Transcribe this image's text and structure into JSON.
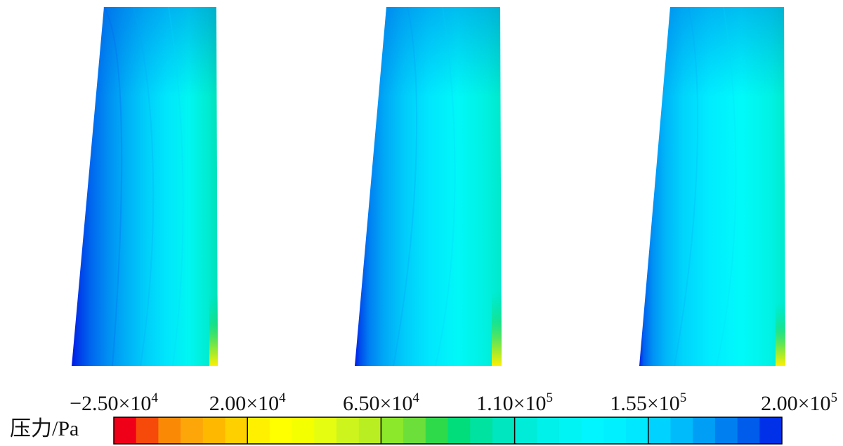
{
  "figure": {
    "panels": [
      {
        "name": "contour-panel-1"
      },
      {
        "name": "contour-panel-2"
      },
      {
        "name": "contour-panel-3"
      }
    ]
  },
  "colorbar": {
    "label": "压力/Pa",
    "ticks": [
      {
        "mantissa": "−2.50",
        "times": "×10",
        "exp": "4"
      },
      {
        "mantissa": "2.00",
        "times": "×10",
        "exp": "4"
      },
      {
        "mantissa": "6.50",
        "times": "×10",
        "exp": "4"
      },
      {
        "mantissa": "1.10",
        "times": "×10",
        "exp": "5"
      },
      {
        "mantissa": "1.55",
        "times": "×10",
        "exp": "5"
      },
      {
        "mantissa": "2.00",
        "times": "×10",
        "exp": "5"
      }
    ],
    "colors": [
      "#f00018",
      "#f64a0a",
      "#fa8a06",
      "#fca60a",
      "#feb800",
      "#ffd000",
      "#fff000",
      "#ffff00",
      "#f4ff00",
      "#e4fd10",
      "#cdf51d",
      "#b9ef22",
      "#8ce82b",
      "#6ddf3a",
      "#2eda4a",
      "#00dd7a",
      "#00e2a0",
      "#00e6be",
      "#00ecd8",
      "#00f0ea",
      "#00f4f4",
      "#00f5ff",
      "#00f0ff",
      "#00e8ff",
      "#00d2ff",
      "#00bbfc",
      "#009ff5",
      "#0080f0",
      "#005ceb",
      "#0030e8"
    ]
  }
}
